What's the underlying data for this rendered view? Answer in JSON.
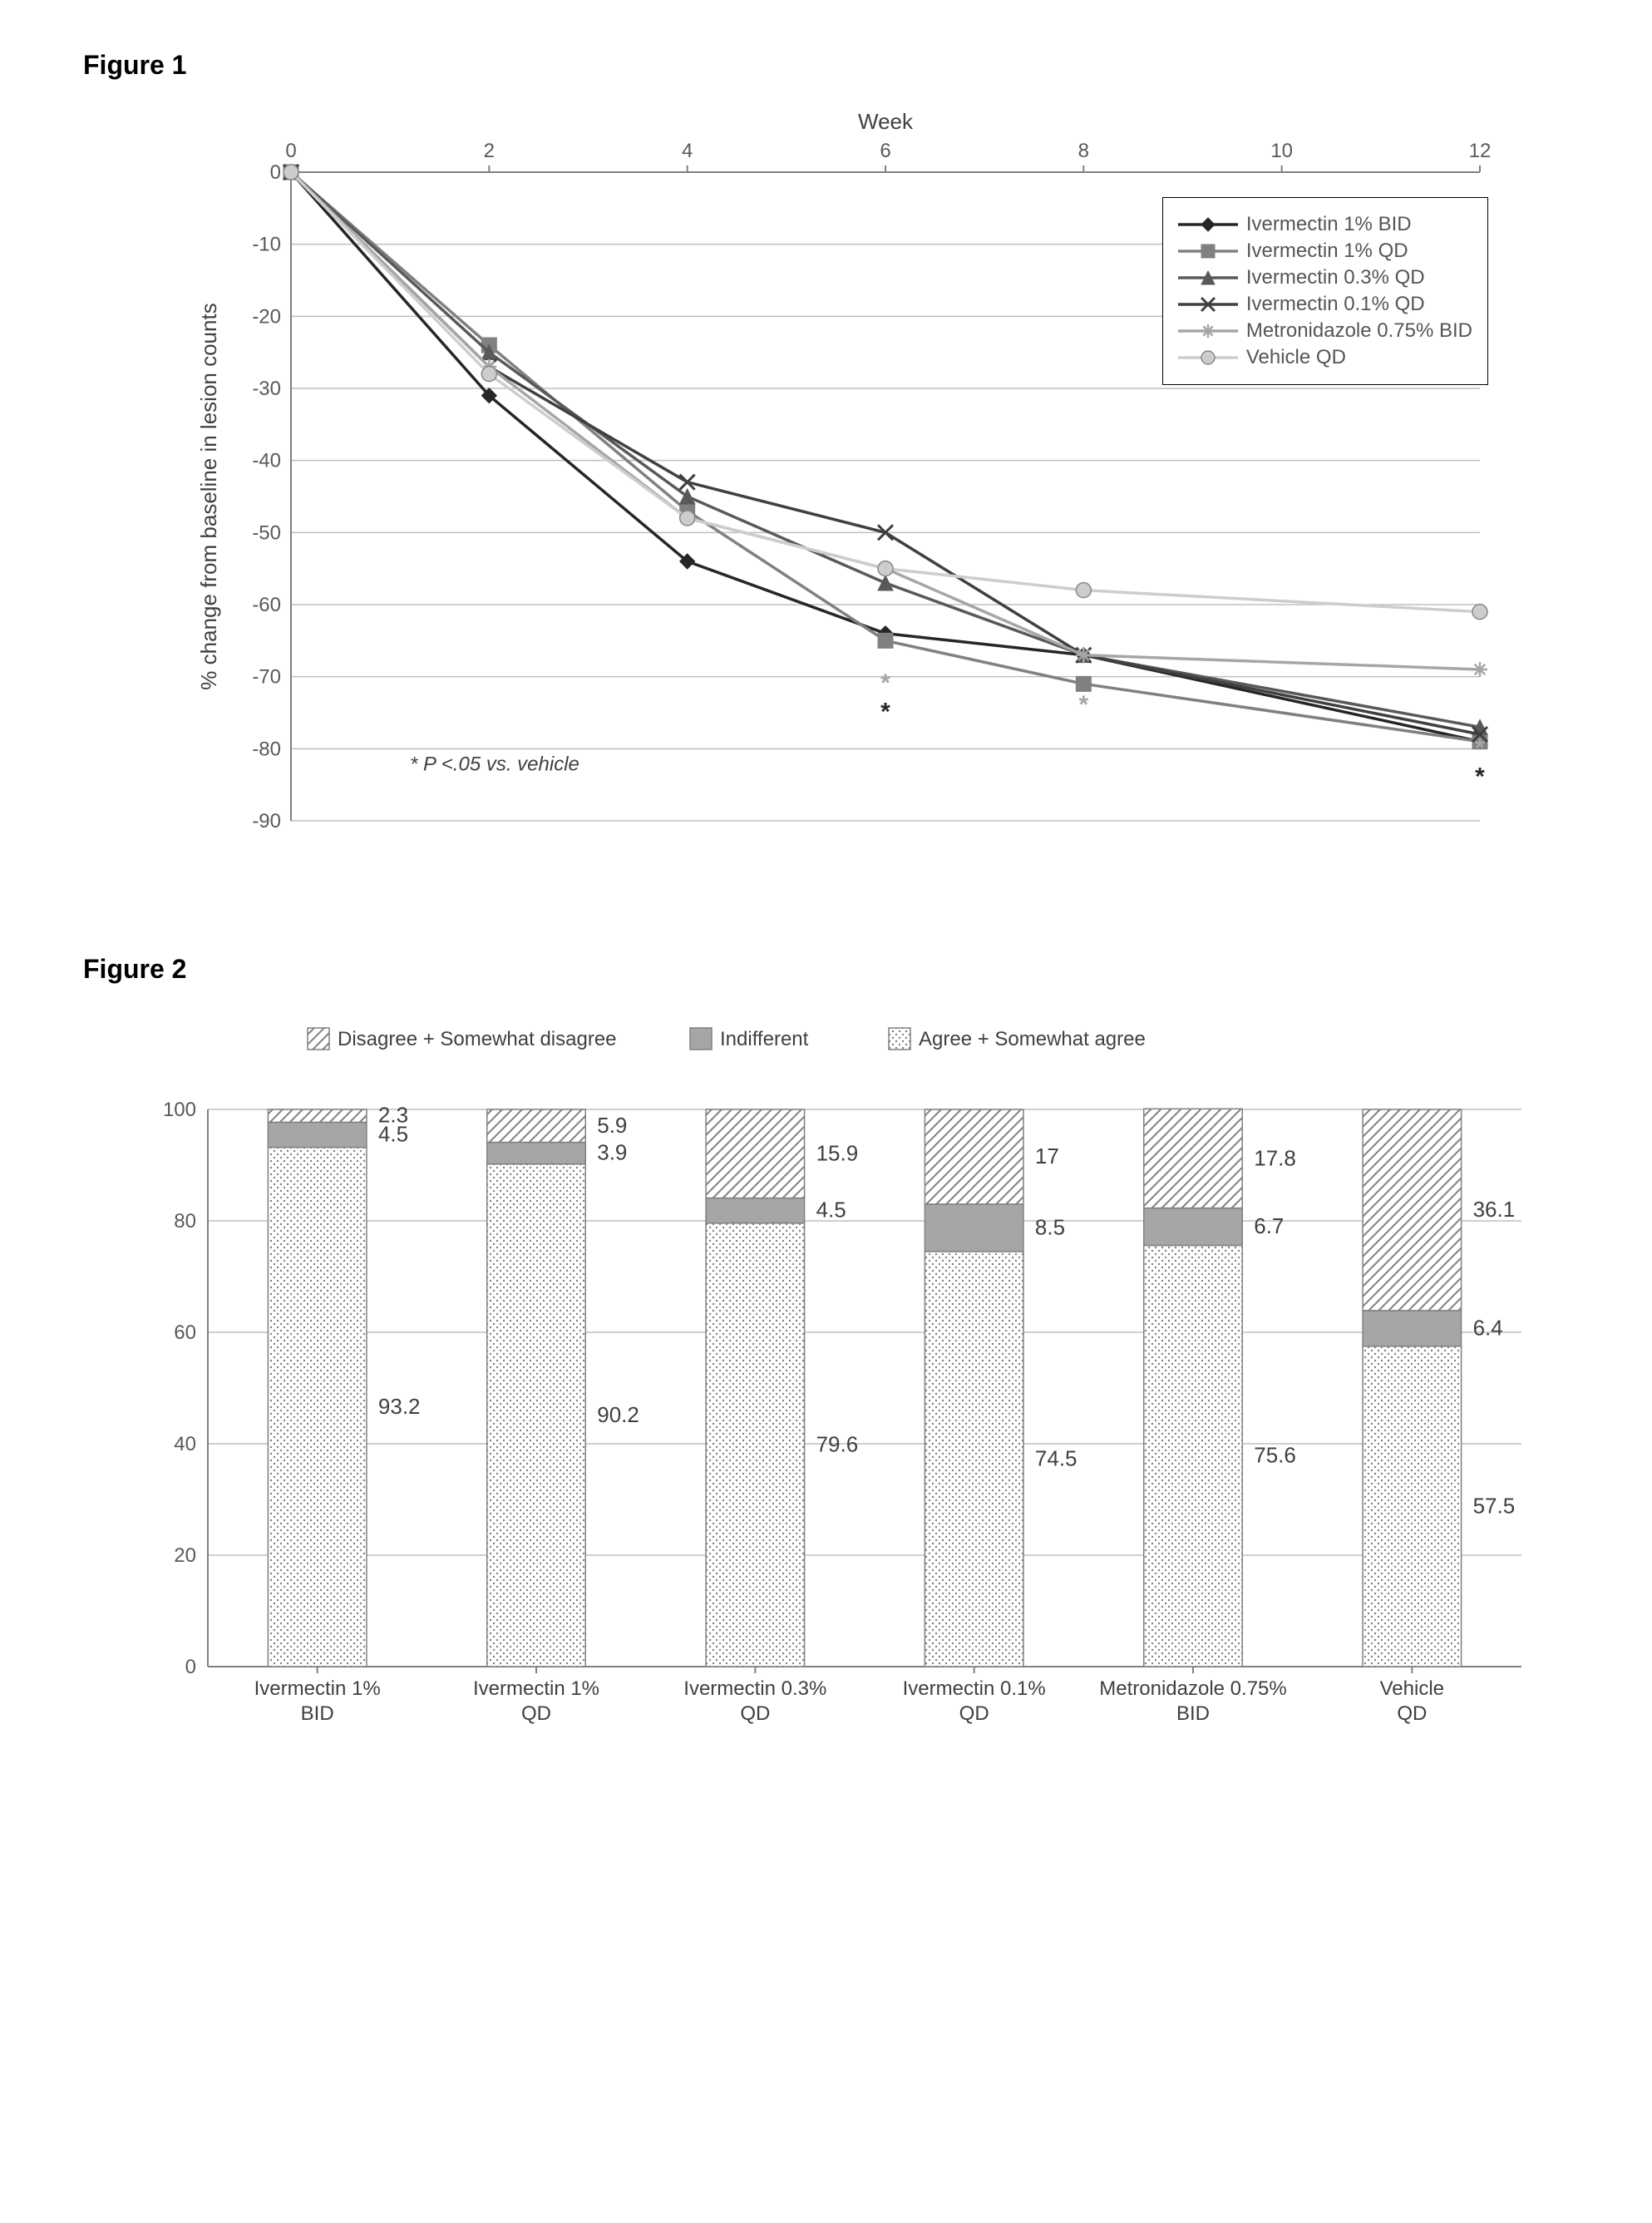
{
  "figure1": {
    "title": "Figure 1",
    "chart_type": "line",
    "x_label": "Week",
    "y_label": "% change from baseline in lesion counts",
    "x_values": [
      0,
      2,
      4,
      6,
      8,
      10,
      12
    ],
    "x_ticks": [
      0,
      2,
      4,
      6,
      8,
      10,
      12
    ],
    "y_ticks": [
      0,
      -10,
      -20,
      -30,
      -40,
      -50,
      -60,
      -70,
      -80,
      -90
    ],
    "ylim": [
      -90,
      0
    ],
    "xlim": [
      0,
      12
    ],
    "gridline_color": "#bfbfbf",
    "axis_color": "#808080",
    "background_color": "#ffffff",
    "axis_fontsize": 26,
    "tick_fontsize": 24,
    "line_width": 3.5,
    "marker_size": 9,
    "legend_position": "top-right",
    "footnote": "* P <.05 vs. vehicle",
    "footnote_fontsize": 24,
    "footnote_color": "#404040",
    "series": [
      {
        "name": "Ivermectin 1% BID",
        "color": "#262626",
        "marker": "diamond",
        "x": [
          0,
          2,
          4,
          6,
          8,
          12
        ],
        "y": [
          0,
          -31,
          -54,
          -64,
          -67,
          -79
        ]
      },
      {
        "name": "Ivermectin 1% QD",
        "color": "#808080",
        "marker": "square",
        "x": [
          0,
          2,
          4,
          6,
          8,
          12
        ],
        "y": [
          0,
          -24,
          -47,
          -65,
          -71,
          -79
        ]
      },
      {
        "name": "Ivermectin 0.3% QD",
        "color": "#595959",
        "marker": "triangle",
        "x": [
          0,
          2,
          4,
          6,
          8,
          12
        ],
        "y": [
          0,
          -25,
          -45,
          -57,
          -67,
          -77
        ]
      },
      {
        "name": "Ivermectin 0.1% QD",
        "color": "#404040",
        "marker": "x",
        "x": [
          0,
          2,
          4,
          6,
          8,
          12
        ],
        "y": [
          0,
          -27,
          -43,
          -50,
          -67,
          -78
        ]
      },
      {
        "name": "Metronidazole 0.75% BID",
        "color": "#a6a6a6",
        "marker": "asterisk",
        "x": [
          0,
          2,
          4,
          6,
          8,
          12
        ],
        "y": [
          0,
          -27,
          -48,
          -55,
          -67,
          -69
        ]
      },
      {
        "name": "Vehicle QD",
        "color": "#cdcdcd",
        "marker": "circle",
        "x": [
          0,
          2,
          4,
          6,
          8,
          12
        ],
        "y": [
          0,
          -28,
          -48,
          -55,
          -58,
          -61
        ]
      }
    ],
    "significance_markers": [
      {
        "x": 6,
        "y_offset": -72,
        "symbol": "*",
        "color": "#a6a6a6"
      },
      {
        "x": 6,
        "y_offset": -76,
        "symbol": "*",
        "color": "#262626"
      },
      {
        "x": 8,
        "y_offset": -75,
        "symbol": "*",
        "color": "#a6a6a6"
      },
      {
        "x": 12,
        "y_offset": -81,
        "symbol": "*",
        "color": "#a6a6a6"
      },
      {
        "x": 12,
        "y_offset": -85,
        "symbol": "*",
        "color": "#262626"
      }
    ]
  },
  "figure2": {
    "title": "Figure 2",
    "chart_type": "stacked-bar",
    "y_ticks": [
      0,
      20,
      40,
      60,
      80,
      100
    ],
    "ylim": [
      0,
      100
    ],
    "gridline_color": "#bfbfbf",
    "axis_color": "#808080",
    "background_color": "#ffffff",
    "tick_fontsize": 24,
    "value_label_fontsize": 26,
    "value_label_color": "#404040",
    "bar_width_ratio": 0.45,
    "categories": [
      {
        "label": "Ivermectin 1% BID"
      },
      {
        "label": "Ivermectin 1% QD"
      },
      {
        "label": "Ivermectin 0.3% QD"
      },
      {
        "label": "Ivermectin 0.1% QD"
      },
      {
        "label": "Metronidazole 0.75% BID"
      },
      {
        "label": "Vehicle QD"
      }
    ],
    "legend_items": [
      {
        "name": "Disagree + Somewhat disagree",
        "key": "disagree",
        "pattern": "diagonal"
      },
      {
        "name": "Indifferent",
        "key": "indifferent",
        "fill": "#a6a6a6"
      },
      {
        "name": "Agree + Somewhat agree",
        "key": "agree",
        "pattern": "dots"
      }
    ],
    "data": [
      {
        "agree": 93.2,
        "indifferent": 4.5,
        "disagree": 2.3
      },
      {
        "agree": 90.2,
        "indifferent": 3.9,
        "disagree": 5.9
      },
      {
        "agree": 79.6,
        "indifferent": 4.5,
        "disagree": 15.9
      },
      {
        "agree": 74.5,
        "indifferent": 8.5,
        "disagree": 17
      },
      {
        "agree": 75.6,
        "indifferent": 6.7,
        "disagree": 17.8
      },
      {
        "agree": 57.5,
        "indifferent": 6.4,
        "disagree": 36.1
      }
    ],
    "pattern_colors": {
      "stroke": "#808080",
      "fill_bg": "#ffffff"
    }
  }
}
